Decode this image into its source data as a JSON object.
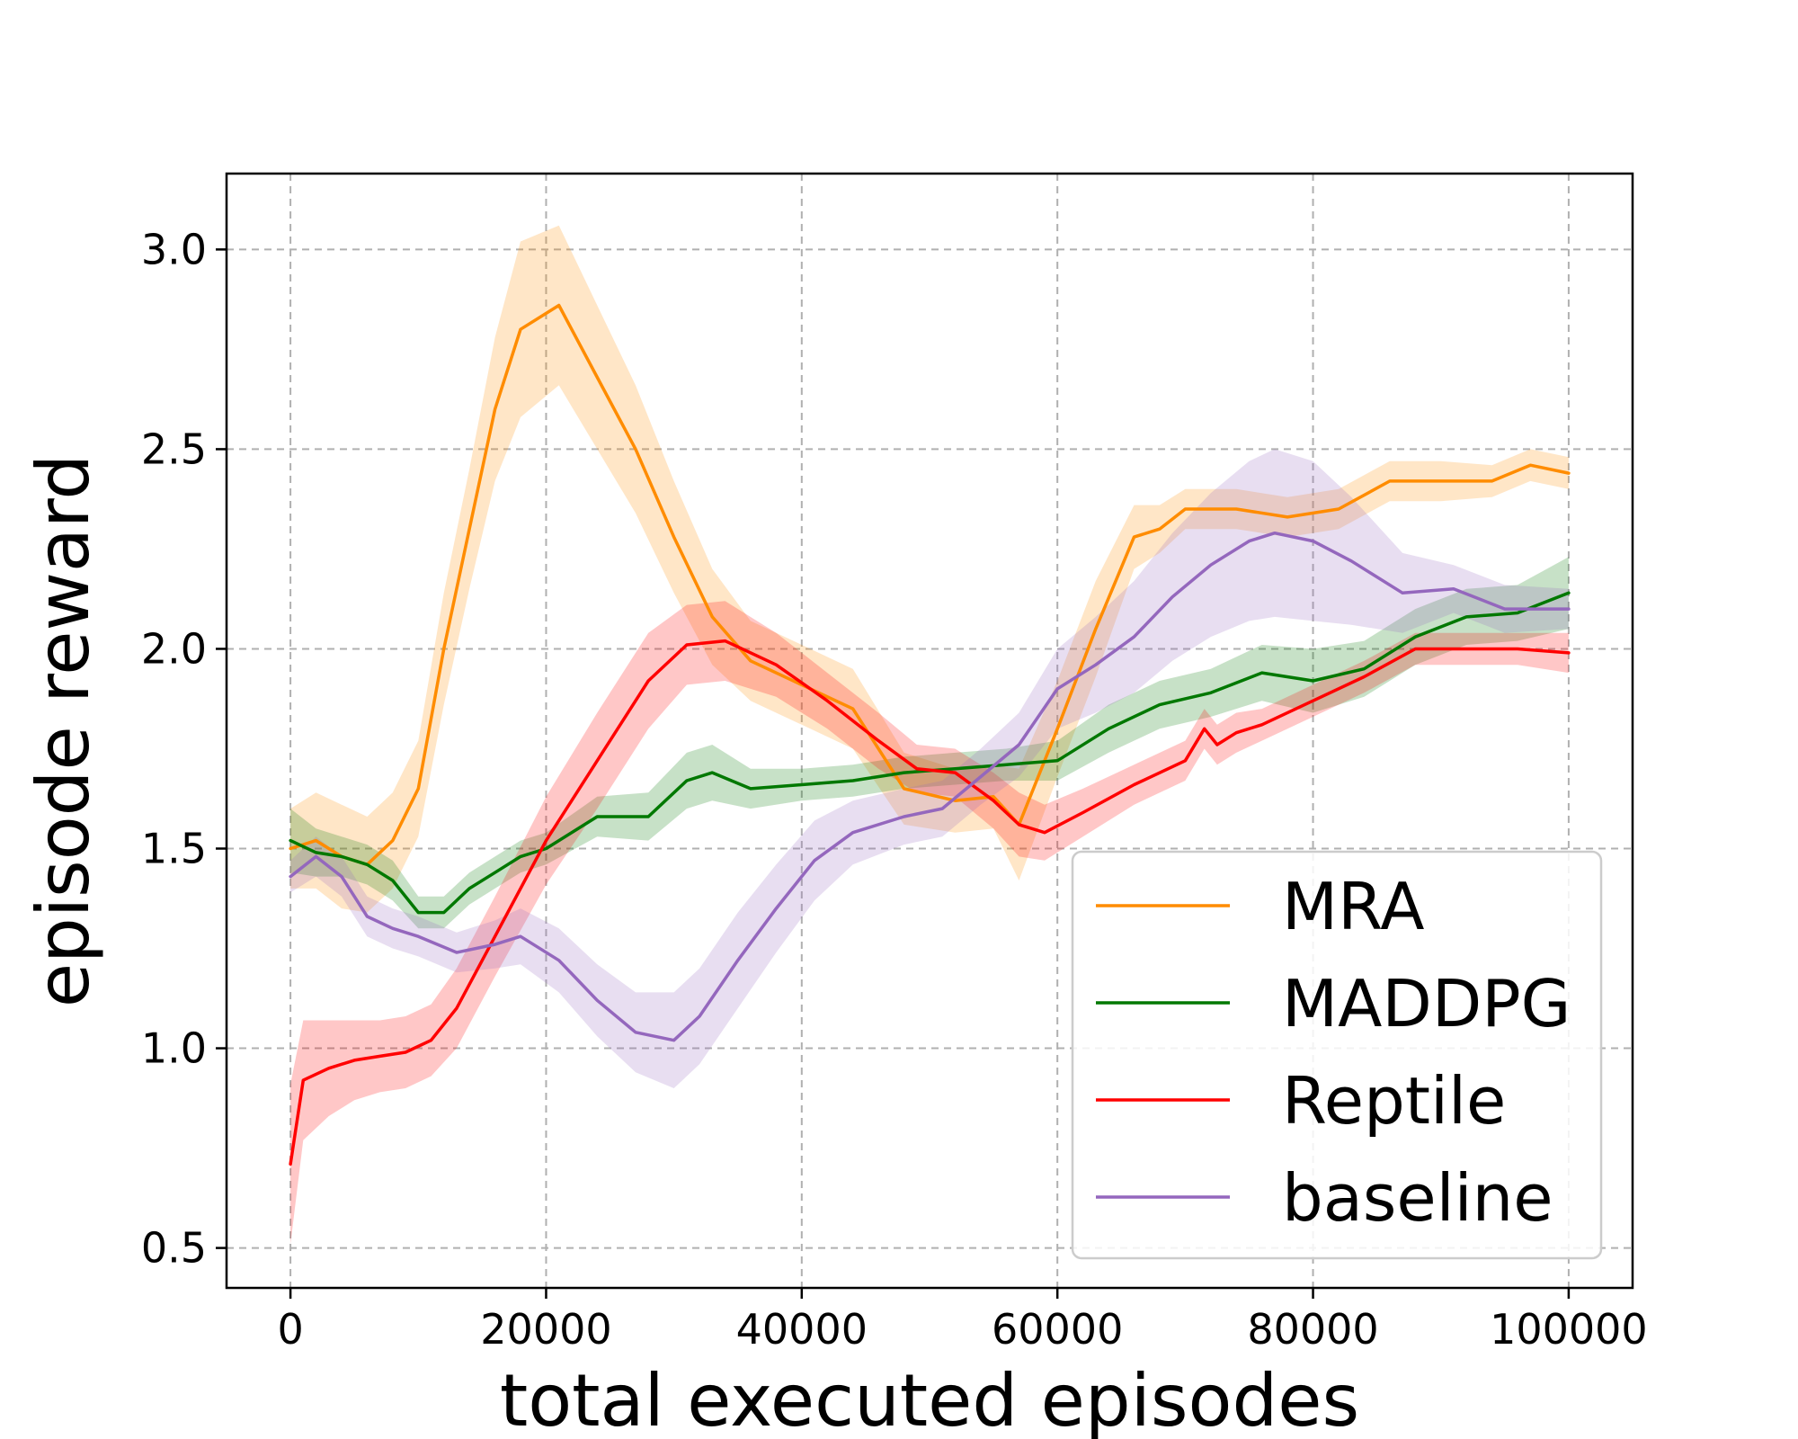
{
  "chart_data": {
    "type": "line",
    "title": "",
    "xlabel": "total executed episodes",
    "ylabel": "episode reward",
    "xlim": [
      -5000,
      105000
    ],
    "ylim": [
      0.4,
      3.19
    ],
    "xticks": [
      0,
      20000,
      40000,
      60000,
      80000,
      100000
    ],
    "xtick_labels": [
      "0",
      "20000",
      "40000",
      "60000",
      "80000",
      "100000"
    ],
    "yticks": [
      0.5,
      1.0,
      1.5,
      2.0,
      2.5,
      3.0
    ],
    "ytick_labels": [
      "0.5",
      "1.0",
      "1.5",
      "2.0",
      "2.5",
      "3.0"
    ],
    "grid": true,
    "legend_position": "lower-right",
    "series": [
      {
        "name": "MRA",
        "color": "#ff8c00",
        "x": [
          0,
          2000,
          4000,
          6000,
          8000,
          10000,
          12000,
          14000,
          16000,
          18000,
          21000,
          24000,
          27000,
          30000,
          33000,
          36000,
          40000,
          44000,
          48000,
          52000,
          55000,
          57000,
          60000,
          63000,
          66000,
          68000,
          70000,
          74000,
          78000,
          82000,
          86000,
          90000,
          94000,
          97000,
          100000
        ],
        "y": [
          1.5,
          1.52,
          1.48,
          1.46,
          1.52,
          1.65,
          2.0,
          2.3,
          2.6,
          2.8,
          2.86,
          2.68,
          2.5,
          2.28,
          2.08,
          1.97,
          1.91,
          1.85,
          1.65,
          1.62,
          1.63,
          1.56,
          1.8,
          2.05,
          2.28,
          2.3,
          2.35,
          2.35,
          2.33,
          2.35,
          2.42,
          2.42,
          2.42,
          2.46,
          2.44
        ],
        "band": [
          0.1,
          0.12,
          0.13,
          0.12,
          0.12,
          0.12,
          0.14,
          0.15,
          0.18,
          0.22,
          0.2,
          0.18,
          0.16,
          0.14,
          0.12,
          0.1,
          0.1,
          0.1,
          0.09,
          0.08,
          0.08,
          0.14,
          0.12,
          0.12,
          0.08,
          0.06,
          0.05,
          0.05,
          0.05,
          0.05,
          0.05,
          0.05,
          0.04,
          0.04,
          0.04
        ]
      },
      {
        "name": "MADDPG",
        "color": "#007800",
        "x": [
          0,
          2000,
          4000,
          6000,
          8000,
          10000,
          12000,
          14000,
          16000,
          18000,
          20000,
          24000,
          28000,
          31000,
          33000,
          36000,
          40000,
          44000,
          48000,
          52000,
          56000,
          60000,
          64000,
          68000,
          72000,
          76000,
          80000,
          84000,
          88000,
          92000,
          96000,
          100000
        ],
        "y": [
          1.52,
          1.49,
          1.48,
          1.46,
          1.42,
          1.34,
          1.34,
          1.4,
          1.44,
          1.48,
          1.5,
          1.58,
          1.58,
          1.67,
          1.69,
          1.65,
          1.66,
          1.67,
          1.69,
          1.7,
          1.71,
          1.72,
          1.8,
          1.86,
          1.89,
          1.94,
          1.92,
          1.95,
          2.03,
          2.08,
          2.09,
          2.14
        ],
        "band": [
          0.08,
          0.06,
          0.05,
          0.05,
          0.05,
          0.04,
          0.04,
          0.04,
          0.04,
          0.04,
          0.04,
          0.05,
          0.06,
          0.07,
          0.07,
          0.05,
          0.04,
          0.04,
          0.04,
          0.04,
          0.04,
          0.05,
          0.06,
          0.06,
          0.06,
          0.07,
          0.08,
          0.07,
          0.07,
          0.07,
          0.07,
          0.09
        ]
      },
      {
        "name": "Reptile",
        "color": "#ff0000",
        "x": [
          0,
          1000,
          3000,
          5000,
          7000,
          9000,
          11000,
          13000,
          16000,
          20000,
          24000,
          28000,
          31000,
          34000,
          38000,
          42000,
          46000,
          49000,
          52000,
          55000,
          57000,
          59000,
          62000,
          66000,
          70000,
          71500,
          72500,
          74000,
          76000,
          80000,
          84000,
          88000,
          92000,
          96000,
          100000
        ],
        "y": [
          0.71,
          0.92,
          0.95,
          0.97,
          0.98,
          0.99,
          1.02,
          1.1,
          1.28,
          1.52,
          1.72,
          1.92,
          2.01,
          2.02,
          1.96,
          1.87,
          1.77,
          1.7,
          1.69,
          1.62,
          1.56,
          1.54,
          1.59,
          1.66,
          1.72,
          1.8,
          1.76,
          1.79,
          1.81,
          1.87,
          1.93,
          2.0,
          2.0,
          2.0,
          1.99
        ],
        "band": [
          0.2,
          0.15,
          0.12,
          0.1,
          0.09,
          0.09,
          0.09,
          0.1,
          0.1,
          0.11,
          0.12,
          0.12,
          0.1,
          0.1,
          0.08,
          0.07,
          0.07,
          0.06,
          0.06,
          0.07,
          0.08,
          0.07,
          0.06,
          0.05,
          0.05,
          0.05,
          0.05,
          0.05,
          0.04,
          0.04,
          0.04,
          0.04,
          0.04,
          0.04,
          0.05
        ]
      },
      {
        "name": "baseline",
        "color": "#9467bd",
        "x": [
          0,
          2000,
          4000,
          6000,
          8000,
          10000,
          13000,
          16000,
          18000,
          21000,
          24000,
          27000,
          30000,
          32000,
          35000,
          38000,
          41000,
          44000,
          48000,
          51000,
          54000,
          57000,
          60000,
          63000,
          66000,
          69000,
          72000,
          75000,
          77000,
          80000,
          83000,
          87000,
          91000,
          95000,
          100000
        ],
        "y": [
          1.43,
          1.48,
          1.43,
          1.33,
          1.3,
          1.28,
          1.24,
          1.26,
          1.28,
          1.22,
          1.12,
          1.04,
          1.02,
          1.08,
          1.22,
          1.35,
          1.47,
          1.54,
          1.58,
          1.6,
          1.68,
          1.76,
          1.9,
          1.96,
          2.03,
          2.13,
          2.21,
          2.27,
          2.29,
          2.27,
          2.22,
          2.14,
          2.15,
          2.1,
          2.1
        ],
        "band": [
          0.04,
          0.05,
          0.05,
          0.05,
          0.05,
          0.05,
          0.05,
          0.06,
          0.07,
          0.08,
          0.09,
          0.1,
          0.12,
          0.12,
          0.12,
          0.11,
          0.1,
          0.08,
          0.07,
          0.07,
          0.07,
          0.08,
          0.1,
          0.12,
          0.14,
          0.16,
          0.18,
          0.2,
          0.21,
          0.2,
          0.16,
          0.1,
          0.06,
          0.06,
          0.05
        ]
      }
    ]
  }
}
